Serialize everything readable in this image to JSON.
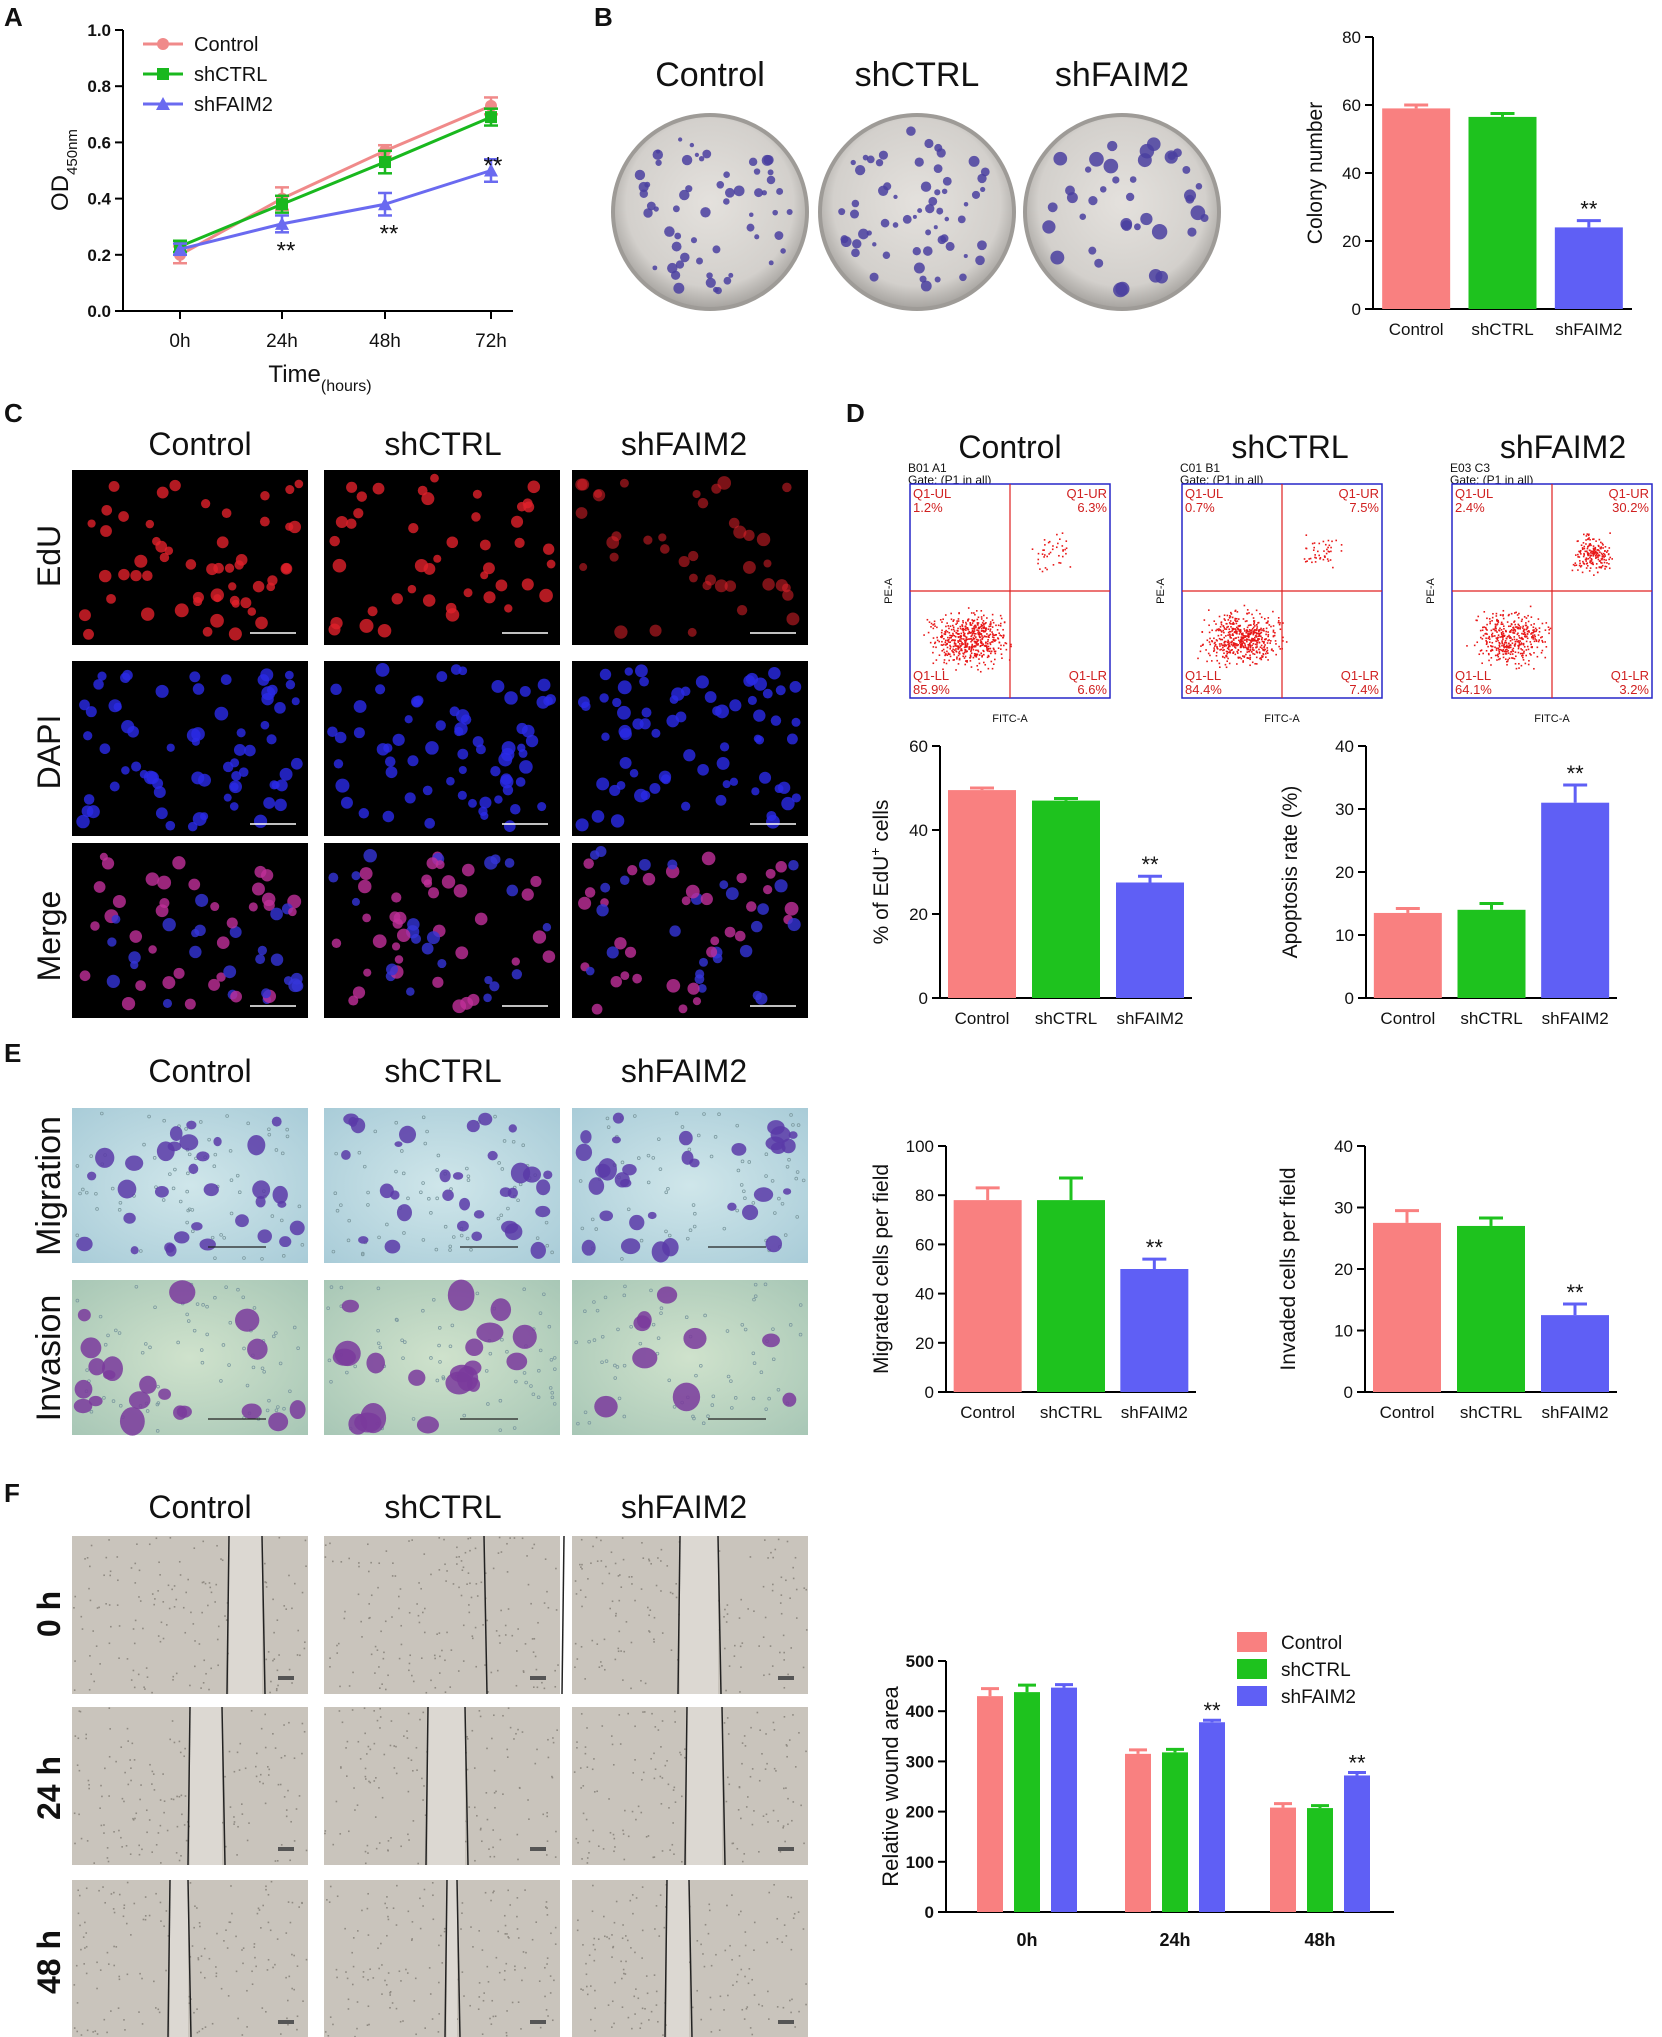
{
  "panels": {
    "A": {
      "letter": "A"
    },
    "B": {
      "letter": "B",
      "groups": [
        "Control",
        "shCTRL",
        "shFAIM2"
      ]
    },
    "C": {
      "letter": "C",
      "groups": [
        "Control",
        "shCTRL",
        "shFAIM2"
      ],
      "rows": [
        "EdU",
        "DAPI",
        "Merge"
      ]
    },
    "D": {
      "letter": "D",
      "groups": [
        "Control",
        "shCTRL",
        "shFAIM2"
      ]
    },
    "E": {
      "letter": "E",
      "groups": [
        "Control",
        "shCTRL",
        "shFAIM2"
      ],
      "rows": [
        "Migration",
        "Invasion"
      ]
    },
    "F": {
      "letter": "F",
      "groups": [
        "Control",
        "shCTRL",
        "shFAIM2"
      ],
      "rows": [
        "0 h",
        "24 h",
        "48 h"
      ]
    }
  },
  "colors": {
    "control": "#f98080",
    "shctrl": "#1ec21e",
    "shfaim2": "#5f5ff5",
    "line_control": "#f08a8a",
    "line_shctrl": "#19b81e",
    "line_shfaim2": "#6a6af0"
  },
  "flow": {
    "axis_x": "FITC-A",
    "axis_y": "PE-A",
    "plots": [
      {
        "sample": "B01 A1",
        "gate": "Gate: (P1 in all)",
        "ul_label": "Q1-UL",
        "ul": "1.2%",
        "ur_label": "Q1-UR",
        "ur": "6.3%",
        "ll_label": "Q1-LL",
        "ll": "85.9%",
        "lr_label": "Q1-LR",
        "lr": "6.6%"
      },
      {
        "sample": "C01 B1",
        "gate": "Gate: (P1 in all)",
        "ul_label": "Q1-UL",
        "ul": "0.7%",
        "ur_label": "Q1-UR",
        "ur": "7.5%",
        "ll_label": "Q1-LL",
        "ll": "84.4%",
        "lr_label": "Q1-LR",
        "lr": "7.4%"
      },
      {
        "sample": "E03 C3",
        "gate": "Gate: (P1 in all)",
        "ul_label": "Q1-UL",
        "ul": "2.4%",
        "ur_label": "Q1-UR",
        "ur": "30.2%",
        "ll_label": "Q1-LL",
        "ll": "64.1%",
        "lr_label": "Q1-LR",
        "lr": "3.2%"
      }
    ]
  },
  "chart_data": [
    {
      "id": "A",
      "type": "line",
      "x": [
        "0h",
        "24h",
        "48h",
        "72h"
      ],
      "series": [
        {
          "name": "Control",
          "values": [
            0.2,
            0.4,
            0.57,
            0.73
          ],
          "errors": [
            0.03,
            0.04,
            0.02,
            0.03
          ]
        },
        {
          "name": "shCTRL",
          "values": [
            0.23,
            0.38,
            0.53,
            0.69
          ],
          "errors": [
            0.02,
            0.03,
            0.04,
            0.03
          ]
        },
        {
          "name": "shFAIM2",
          "values": [
            0.22,
            0.31,
            0.38,
            0.5
          ],
          "errors": [
            0.02,
            0.03,
            0.04,
            0.04
          ]
        }
      ],
      "ylabel_main": "OD",
      "ylabel_sub": "450nm",
      "xlabel_main": "Time",
      "xlabel_sub": "(hours)",
      "ylim": [
        0,
        1.0
      ],
      "yticks": [
        "0.0",
        "0.2",
        "0.4",
        "0.6",
        "0.8",
        "1.0"
      ],
      "significance": [
        "",
        "**",
        "**",
        "**"
      ],
      "legend": "top-left"
    },
    {
      "id": "B",
      "type": "bar",
      "categories": [
        "Control",
        "shCTRL",
        "shFAIM2"
      ],
      "values": [
        59,
        56.5,
        24
      ],
      "errors": [
        1,
        1,
        2
      ],
      "ylabel": "Colony number",
      "ylim": [
        0,
        80
      ],
      "yticks": [
        "0",
        "20",
        "40",
        "60",
        "80"
      ],
      "significance": [
        "",
        "",
        "**"
      ]
    },
    {
      "id": "C",
      "type": "bar",
      "categories": [
        "Control",
        "shCTRL",
        "shFAIM2"
      ],
      "values": [
        49.5,
        47,
        27.5
      ],
      "errors": [
        0.5,
        0.5,
        1.5
      ],
      "ylabel": "% of EdU",
      "ylabel_sup": "+",
      "ylabel_tail": " cells",
      "ylim": [
        0,
        60
      ],
      "yticks": [
        "0",
        "20",
        "40",
        "60"
      ],
      "significance": [
        "",
        "",
        "**"
      ]
    },
    {
      "id": "D",
      "type": "bar",
      "categories": [
        "Control",
        "shCTRL",
        "shFAIM2"
      ],
      "values": [
        13.5,
        14,
        31
      ],
      "errors": [
        0.7,
        1,
        2.8
      ],
      "ylabel": "Apoptosis rate (%)",
      "ylim": [
        0,
        40
      ],
      "yticks": [
        "0",
        "10",
        "20",
        "30",
        "40"
      ],
      "significance": [
        "",
        "",
        "**"
      ]
    },
    {
      "id": "E1",
      "type": "bar",
      "categories": [
        "Control",
        "shCTRL",
        "shFAIM2"
      ],
      "values": [
        78,
        78,
        50
      ],
      "errors": [
        5,
        9,
        4
      ],
      "ylabel": "Migrated cells per field",
      "ylim": [
        0,
        100
      ],
      "yticks": [
        "0",
        "20",
        "40",
        "60",
        "80",
        "100"
      ],
      "significance": [
        "",
        "",
        "**"
      ]
    },
    {
      "id": "E2",
      "type": "bar",
      "categories": [
        "Control",
        "shCTRL",
        "shFAIM2"
      ],
      "values": [
        27.5,
        27,
        12.5
      ],
      "errors": [
        2,
        1.3,
        1.8
      ],
      "ylabel": "Invaded cells per field",
      "ylim": [
        0,
        40
      ],
      "yticks": [
        "0",
        "10",
        "20",
        "30",
        "40"
      ],
      "significance": [
        "",
        "",
        "**"
      ]
    },
    {
      "id": "F",
      "type": "bar",
      "categories": [
        "0h",
        "24h",
        "48h"
      ],
      "series": [
        {
          "name": "Control",
          "values": [
            430,
            315,
            208
          ],
          "errors": [
            15,
            8,
            8
          ]
        },
        {
          "name": "shCTRL",
          "values": [
            438,
            318,
            207
          ],
          "errors": [
            14,
            6,
            5
          ]
        },
        {
          "name": "shFAIM2",
          "values": [
            447,
            378,
            272
          ],
          "errors": [
            6,
            4,
            6
          ]
        }
      ],
      "ylabel": "Relative wound area",
      "ylim": [
        0,
        500
      ],
      "yticks": [
        "0",
        "100",
        "200",
        "300",
        "400",
        "500"
      ],
      "significance": [
        [
          "",
          "",
          ""
        ],
        [
          "",
          "",
          "**"
        ],
        [
          "",
          "",
          "**"
        ]
      ],
      "legend": "top-right"
    }
  ]
}
